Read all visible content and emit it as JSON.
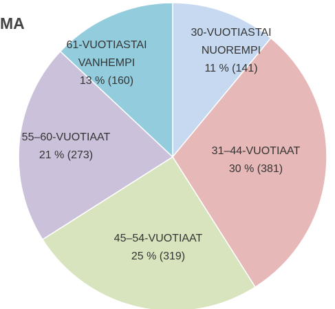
{
  "chart_data": {
    "type": "pie",
    "title": "MA",
    "categories": [
      [
        "30-VUOTIASTAI",
        "NUOREMPI"
      ],
      [
        "31–44-VUOTIAAT"
      ],
      [
        "45–54-VUOTIAAT"
      ],
      [
        "55–60-VUOTIAAT"
      ],
      [
        "61-VUOTIASTAI",
        "VANHEMPI"
      ]
    ],
    "values": [
      11,
      30,
      25,
      21,
      13
    ],
    "value_labels": [
      "11 % (141)",
      "30 % (381)",
      "25 % (319)",
      "21 % (273)",
      "13 % (160)"
    ],
    "colors": [
      "#c6d9f1",
      "#e6b9b8",
      "#d7e4bd",
      "#ccc1da",
      "#93cddd"
    ]
  }
}
